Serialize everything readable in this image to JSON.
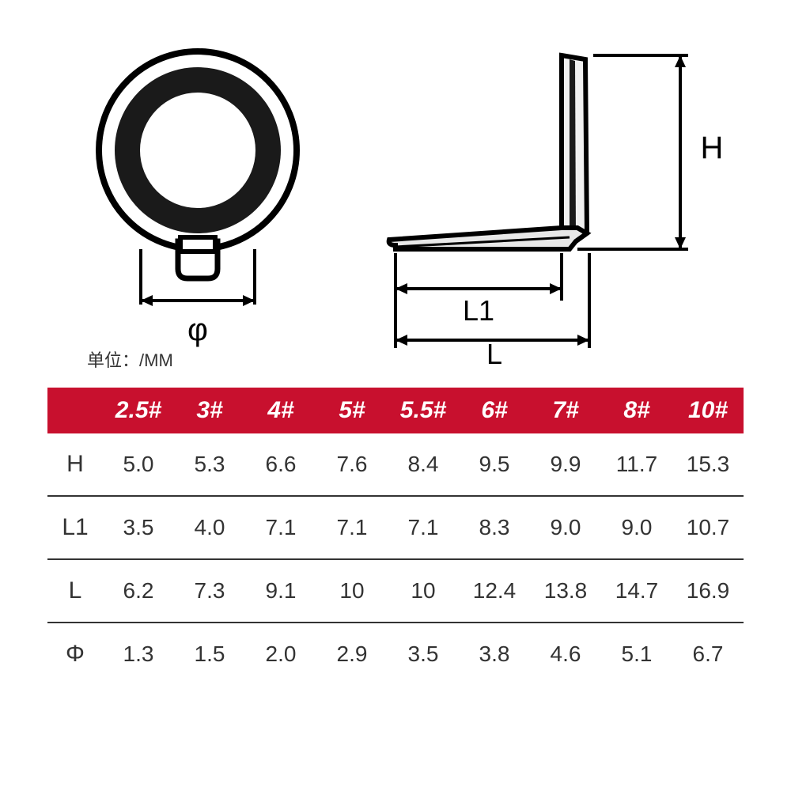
{
  "unit_text": "单位：/MM",
  "diagram": {
    "labels": {
      "phi": "φ",
      "L1": "L1",
      "L": "L",
      "H": "H"
    },
    "stroke_color": "#000000",
    "ring_inner_fill": "#ffffff",
    "ring_band_fill": "#1a1a1a"
  },
  "table": {
    "header_bg": "#c8102e",
    "header_fg": "#ffffff",
    "cell_fg": "#333333",
    "border_color": "#333333",
    "sizes": [
      "2.5#",
      "3#",
      "4#",
      "5#",
      "5.5#",
      "6#",
      "7#",
      "8#",
      "10#"
    ],
    "rows": [
      {
        "label": "H",
        "values": [
          "5.0",
          "5.3",
          "6.6",
          "7.6",
          "8.4",
          "9.5",
          "9.9",
          "11.7",
          "15.3"
        ]
      },
      {
        "label": "L1",
        "values": [
          "3.5",
          "4.0",
          "7.1",
          "7.1",
          "7.1",
          "8.3",
          "9.0",
          "9.0",
          "10.7"
        ]
      },
      {
        "label": "L",
        "values": [
          "6.2",
          "7.3",
          "9.1",
          "10",
          "10",
          "12.4",
          "13.8",
          "14.7",
          "16.9"
        ]
      },
      {
        "label": "Φ",
        "values": [
          "1.3",
          "1.5",
          "2.0",
          "2.9",
          "3.5",
          "3.8",
          "4.6",
          "5.1",
          "6.7"
        ]
      }
    ]
  }
}
